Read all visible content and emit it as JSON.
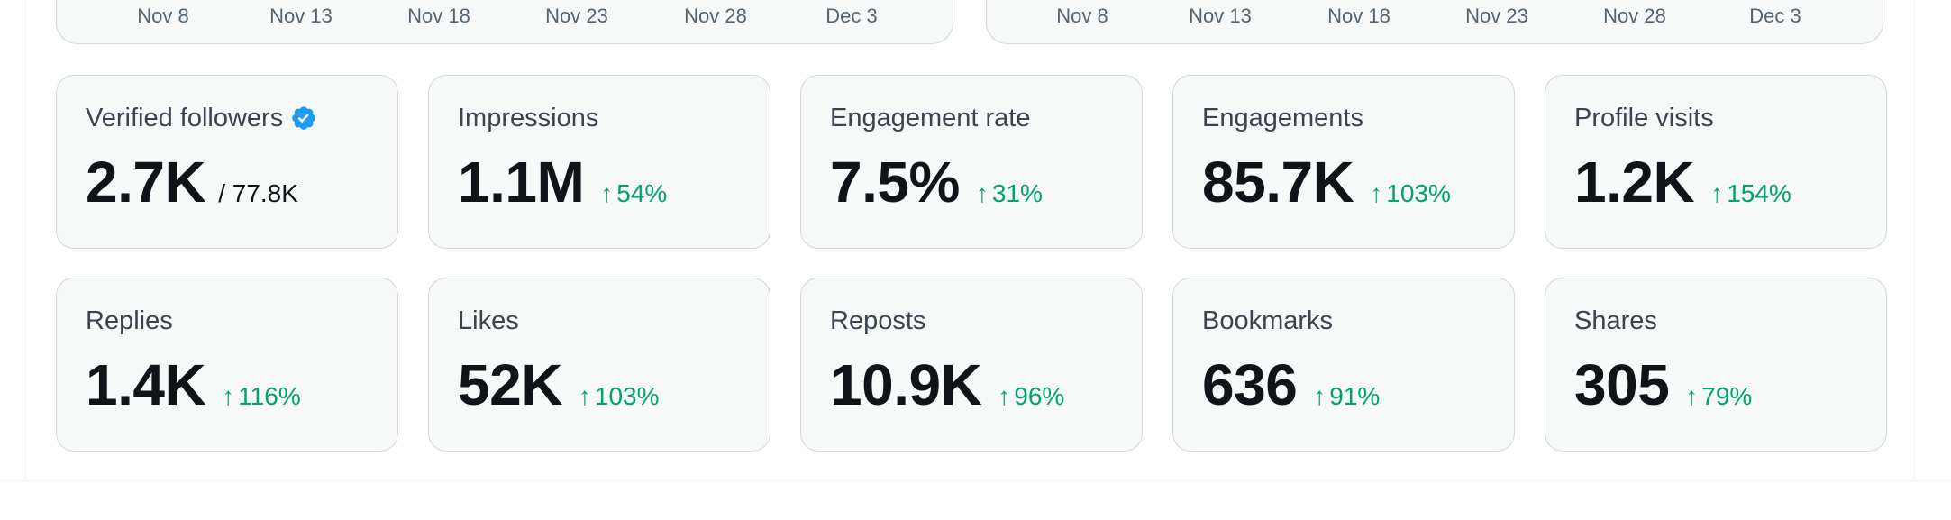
{
  "charts": [
    {
      "x_ticks": [
        "Nov 8",
        "Nov 13",
        "Nov 18",
        "Nov 23",
        "Nov 28",
        "Dec 3"
      ]
    },
    {
      "x_ticks": [
        "Nov 8",
        "Nov 13",
        "Nov 18",
        "Nov 23",
        "Nov 28",
        "Dec 3"
      ]
    }
  ],
  "colors": {
    "positive_delta": "#00a36c",
    "verified_badge": "#1d9bf0",
    "card_bg": "#f7f9f9",
    "card_border": "#cfd9de"
  },
  "arrow_glyph": "↑",
  "metrics_row1": [
    {
      "label": "Verified followers",
      "value": "2.7K",
      "total": "/ 77.8K",
      "icon": "verified-badge-icon"
    },
    {
      "label": "Impressions",
      "value": "1.1M",
      "delta": "54%"
    },
    {
      "label": "Engagement rate",
      "value": "7.5%",
      "delta": "31%"
    },
    {
      "label": "Engagements",
      "value": "85.7K",
      "delta": "103%"
    },
    {
      "label": "Profile visits",
      "value": "1.2K",
      "delta": "154%"
    }
  ],
  "metrics_row2": [
    {
      "label": "Replies",
      "value": "1.4K",
      "delta": "116%"
    },
    {
      "label": "Likes",
      "value": "52K",
      "delta": "103%"
    },
    {
      "label": "Reposts",
      "value": "10.9K",
      "delta": "96%"
    },
    {
      "label": "Bookmarks",
      "value": "636",
      "delta": "91%"
    },
    {
      "label": "Shares",
      "value": "305",
      "delta": "79%"
    }
  ]
}
